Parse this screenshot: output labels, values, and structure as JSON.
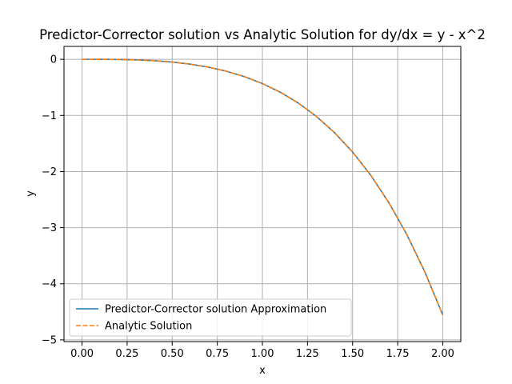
{
  "chart_data": {
    "type": "line",
    "title": "Predictor-Corrector solution vs Analytic Solution for dy/dx = y - x^2",
    "xlabel": "x",
    "ylabel": "y",
    "xlim": [
      -0.1,
      2.1
    ],
    "ylim": [
      -5.03,
      0.23
    ],
    "xticks": [
      0.0,
      0.25,
      0.5,
      0.75,
      1.0,
      1.25,
      1.5,
      1.75,
      2.0
    ],
    "xtick_labels": [
      "0.00",
      "0.25",
      "0.50",
      "0.75",
      "1.00",
      "1.25",
      "1.50",
      "1.75",
      "2.00"
    ],
    "yticks": [
      0,
      -1,
      -2,
      -3,
      -4,
      -5
    ],
    "ytick_labels": [
      "0",
      "−1",
      "−2",
      "−3",
      "−4",
      "−5"
    ],
    "grid": true,
    "legend": "lower-left",
    "series": [
      {
        "name": "Predictor-Corrector solution  Approximation",
        "color": "#1f77b4",
        "dash": "solid",
        "x": [
          0.0,
          0.1,
          0.2,
          0.3,
          0.4,
          0.5,
          0.6,
          0.7,
          0.8,
          0.9,
          1.0,
          1.1,
          1.2,
          1.3,
          1.4,
          1.5,
          1.6,
          1.7,
          1.8,
          1.9,
          2.0
        ],
        "y": [
          0.0,
          -0.0003,
          -0.0028,
          -0.0099,
          -0.0244,
          -0.0487,
          -0.0859,
          -0.1392,
          -0.2119,
          -0.3078,
          -0.4317,
          -0.5876,
          -0.7815,
          -1.0189,
          -1.3071,
          -1.6523,
          -2.0632,
          -2.5483,
          -3.118,
          -3.783,
          -4.5556
        ]
      },
      {
        "name": "Analytic Solution",
        "color": "#ff7f0e",
        "dash": "dashed",
        "x": [
          0.0,
          0.1,
          0.2,
          0.3,
          0.4,
          0.5,
          0.6,
          0.7,
          0.8,
          0.9,
          1.0,
          1.1,
          1.2,
          1.3,
          1.4,
          1.5,
          1.6,
          1.7,
          1.8,
          1.9,
          2.0
        ],
        "y": [
          0.0,
          -0.0003,
          -0.0028,
          -0.0099,
          -0.0244,
          -0.0487,
          -0.0859,
          -0.1392,
          -0.2119,
          -0.3078,
          -0.4317,
          -0.5876,
          -0.7815,
          -1.0189,
          -1.3071,
          -1.6523,
          -2.0632,
          -2.5483,
          -3.118,
          -3.783,
          -4.5556
        ]
      }
    ]
  }
}
